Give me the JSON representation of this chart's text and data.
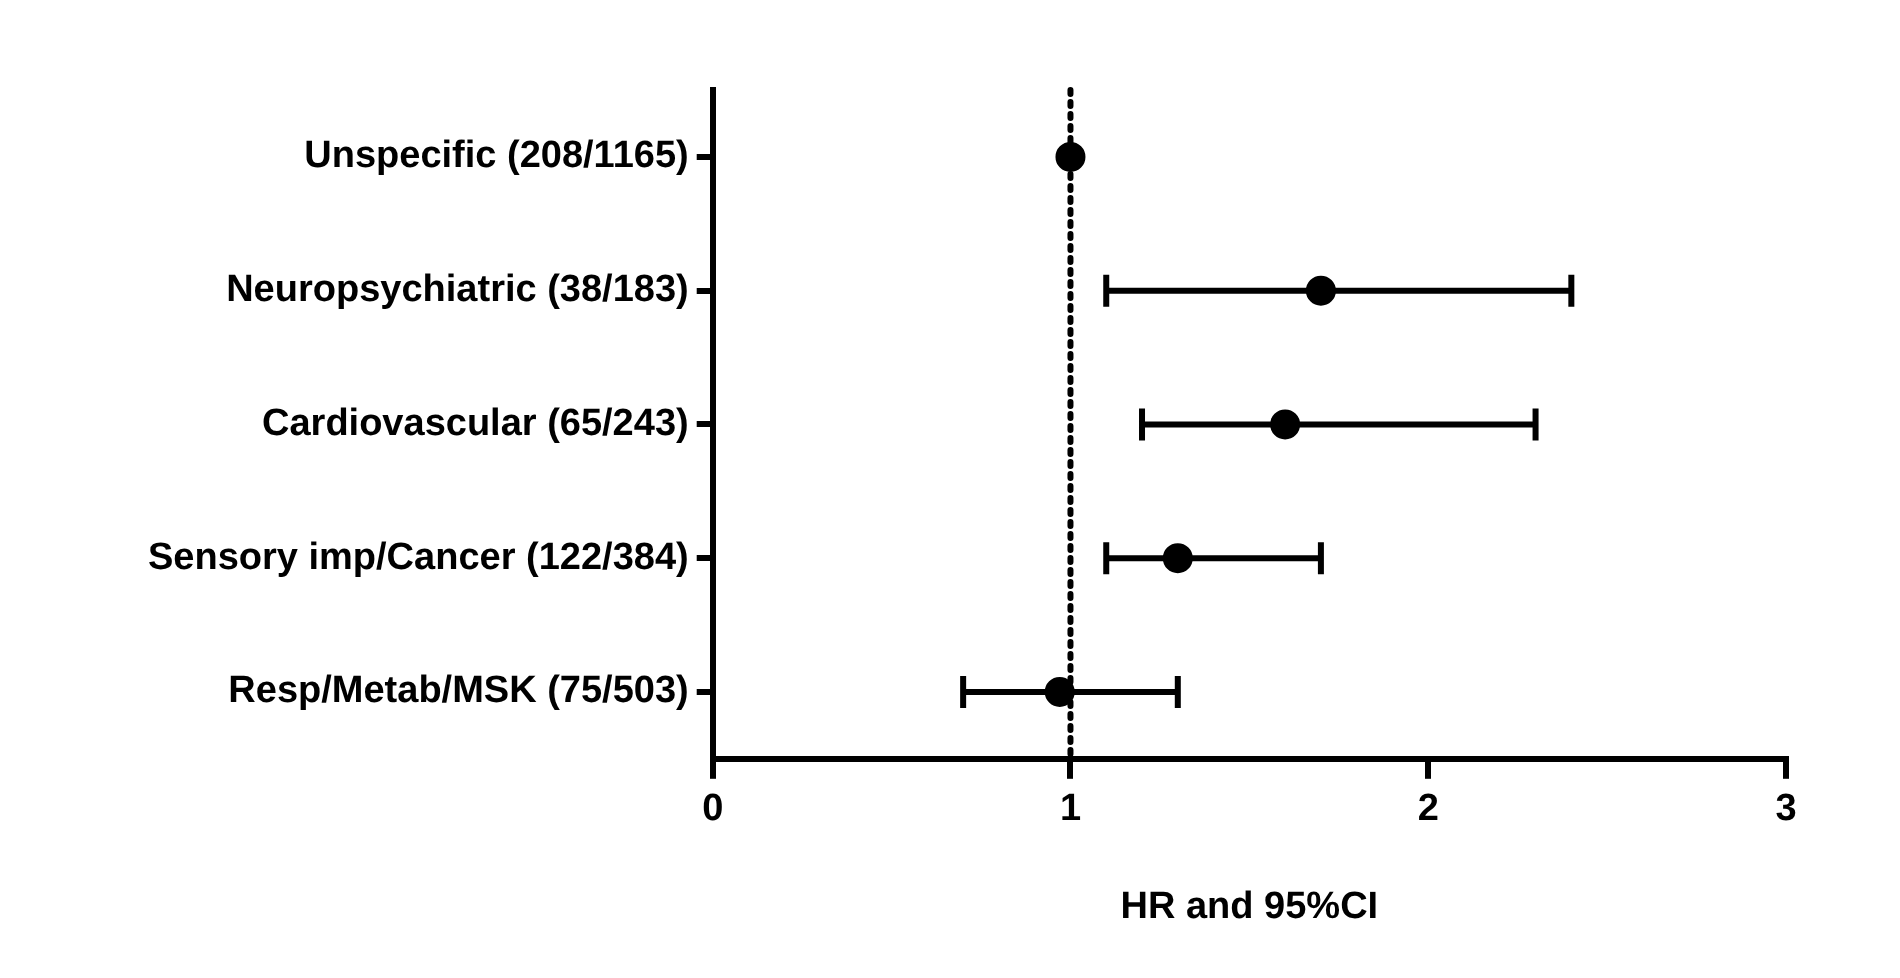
{
  "chart_data": {
    "type": "scatter",
    "orientation": "horizontal",
    "xlabel": "HR and 95%CI",
    "categories": [
      "Unspecific (208/1165)",
      "Neuropsychiatric (38/183)",
      "Cardiovascular (65/243)",
      "Sensory imp/Cancer (122/384)",
      "Resp/Metab/MSK (75/503)"
    ],
    "values": [
      1.0,
      1.7,
      1.6,
      1.3,
      0.97
    ],
    "errors": [
      null,
      [
        1.1,
        2.4
      ],
      [
        1.2,
        2.3
      ],
      [
        1.1,
        1.7
      ],
      [
        0.7,
        1.3
      ]
    ],
    "color": "#000000",
    "marker": "circle",
    "xlim": [
      0,
      3
    ],
    "xticks": [
      0,
      1,
      2,
      3
    ],
    "ref_lines": [
      {
        "axis": "x",
        "value": 1,
        "line_style": "dotted"
      }
    ],
    "grid": false,
    "legend": false
  }
}
